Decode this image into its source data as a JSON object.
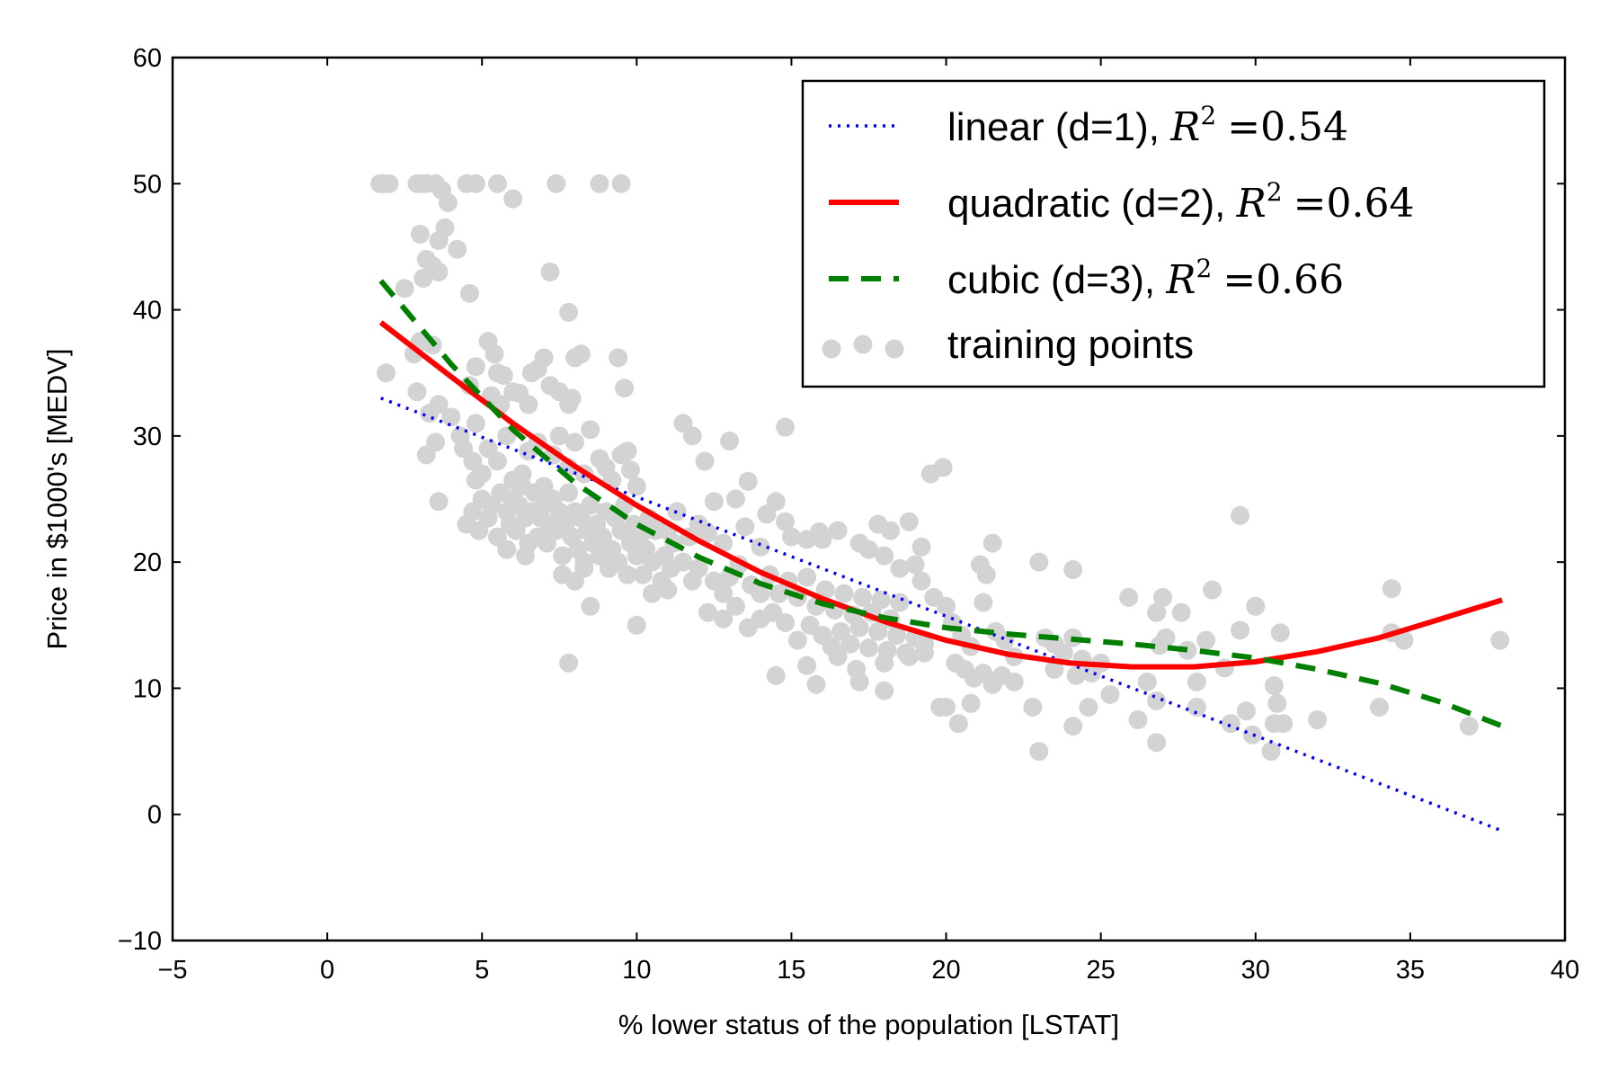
{
  "chart_data": {
    "type": "scatter",
    "title": "",
    "xlabel": "% lower status of the population [LSTAT]",
    "ylabel": "Price in $1000's [MEDV]",
    "xlim": [
      -5,
      40
    ],
    "ylim": [
      -10,
      60
    ],
    "xticks": [
      -5,
      0,
      5,
      10,
      15,
      20,
      25,
      30,
      35,
      40
    ],
    "yticks": [
      -10,
      0,
      10,
      20,
      30,
      40,
      50,
      60
    ],
    "xtick_labels": [
      "−5",
      "0",
      "5",
      "10",
      "15",
      "20",
      "25",
      "30",
      "35",
      "40"
    ],
    "ytick_labels": [
      "−10",
      "0",
      "10",
      "20",
      "30",
      "40",
      "50",
      "60"
    ],
    "grid": false,
    "legend_position": "top-right",
    "scatter": {
      "name": "training points",
      "color": "#d3d3d3",
      "points": [
        [
          1.7,
          50
        ],
        [
          1.8,
          50
        ],
        [
          2.0,
          50
        ],
        [
          2.9,
          50
        ],
        [
          3.0,
          50
        ],
        [
          3.2,
          50
        ],
        [
          3.5,
          50
        ],
        [
          4.5,
          50
        ],
        [
          4.8,
          50
        ],
        [
          5.5,
          50
        ],
        [
          7.4,
          50
        ],
        [
          8.8,
          50
        ],
        [
          9.5,
          50
        ],
        [
          3.7,
          49.5
        ],
        [
          3.9,
          48.5
        ],
        [
          6.0,
          48.8
        ],
        [
          3.0,
          46
        ],
        [
          3.8,
          46.5
        ],
        [
          3.2,
          44
        ],
        [
          3.4,
          43.5
        ],
        [
          3.6,
          45.5
        ],
        [
          4.2,
          44.8
        ],
        [
          3.1,
          42.5
        ],
        [
          3.6,
          43
        ],
        [
          7.2,
          43
        ],
        [
          2.5,
          41.7
        ],
        [
          4.6,
          41.3
        ],
        [
          7.8,
          39.8
        ],
        [
          1.9,
          35
        ],
        [
          2.8,
          36.5
        ],
        [
          3.0,
          37.5
        ],
        [
          3.4,
          37.2
        ],
        [
          2.9,
          33.5
        ],
        [
          3.3,
          31.8
        ],
        [
          3.6,
          32.5
        ],
        [
          3.2,
          28.5
        ],
        [
          3.5,
          29.5
        ],
        [
          3.6,
          24.8
        ],
        [
          4.0,
          31.5
        ],
        [
          4.3,
          30
        ],
        [
          4.6,
          34
        ],
        [
          4.8,
          31
        ],
        [
          4.8,
          35.5
        ],
        [
          5.2,
          37.5
        ],
        [
          5.4,
          36.5
        ],
        [
          5.5,
          35
        ],
        [
          5.3,
          33.2
        ],
        [
          5.6,
          32.5
        ],
        [
          5.7,
          34.8
        ],
        [
          6.0,
          33.5
        ],
        [
          6.2,
          33.4
        ],
        [
          6.5,
          32.5
        ],
        [
          6.6,
          35
        ],
        [
          6.8,
          35.3
        ],
        [
          7.0,
          36.2
        ],
        [
          7.2,
          34
        ],
        [
          7.5,
          33.5
        ],
        [
          7.8,
          32.5
        ],
        [
          7.9,
          33
        ],
        [
          8.0,
          36.2
        ],
        [
          8.2,
          36.5
        ],
        [
          9.4,
          36.2
        ],
        [
          9.6,
          33.8
        ],
        [
          4.4,
          29
        ],
        [
          4.7,
          28
        ],
        [
          4.8,
          26.5
        ],
        [
          5.0,
          27
        ],
        [
          5.2,
          29
        ],
        [
          5.5,
          28
        ],
        [
          5.8,
          30
        ],
        [
          6.0,
          26.5
        ],
        [
          6.3,
          27
        ],
        [
          6.5,
          28.8
        ],
        [
          6.8,
          29.5
        ],
        [
          7.0,
          26
        ],
        [
          7.3,
          28.5
        ],
        [
          7.5,
          30
        ],
        [
          7.8,
          27.5
        ],
        [
          8.0,
          29.5
        ],
        [
          8.3,
          27
        ],
        [
          8.5,
          30.5
        ],
        [
          8.8,
          28.2
        ],
        [
          9.0,
          27.5
        ],
        [
          9.2,
          26.5
        ],
        [
          9.5,
          28.5
        ],
        [
          9.7,
          28.8
        ],
        [
          9.8,
          27.3
        ],
        [
          10.0,
          26
        ],
        [
          4.5,
          23
        ],
        [
          4.7,
          24
        ],
        [
          4.9,
          22.5
        ],
        [
          5.0,
          25
        ],
        [
          5.2,
          23.5
        ],
        [
          5.3,
          24.5
        ],
        [
          5.5,
          22
        ],
        [
          5.6,
          25.5
        ],
        [
          5.8,
          24
        ],
        [
          5.9,
          23
        ],
        [
          6.0,
          25
        ],
        [
          6.1,
          22.5
        ],
        [
          6.2,
          24.5
        ],
        [
          6.3,
          26
        ],
        [
          6.4,
          23.5
        ],
        [
          6.5,
          21.5
        ],
        [
          6.6,
          24
        ],
        [
          6.7,
          25.5
        ],
        [
          6.8,
          22
        ],
        [
          6.9,
          23.5
        ],
        [
          7.0,
          24.5
        ],
        [
          7.1,
          21.5
        ],
        [
          7.2,
          23
        ],
        [
          7.3,
          25
        ],
        [
          7.4,
          22.5
        ],
        [
          7.5,
          24
        ],
        [
          7.6,
          20.5
        ],
        [
          7.7,
          23
        ],
        [
          7.8,
          25.5
        ],
        [
          7.9,
          22
        ],
        [
          8.0,
          24
        ],
        [
          8.1,
          21
        ],
        [
          8.2,
          23.5
        ],
        [
          8.3,
          20
        ],
        [
          8.4,
          22.5
        ],
        [
          8.5,
          24.5
        ],
        [
          8.6,
          21.5
        ],
        [
          8.7,
          23
        ],
        [
          8.8,
          20.5
        ],
        [
          8.9,
          22
        ],
        [
          9.0,
          24
        ],
        [
          9.1,
          19.5
        ],
        [
          9.2,
          21
        ],
        [
          9.3,
          23.5
        ],
        [
          9.4,
          20
        ],
        [
          9.5,
          22.5
        ],
        [
          9.6,
          24.5
        ],
        [
          9.7,
          19
        ],
        [
          9.8,
          21.5
        ],
        [
          9.9,
          23
        ],
        [
          10.0,
          20.5
        ],
        [
          10.1,
          22
        ],
        [
          10.2,
          19
        ],
        [
          10.3,
          21
        ],
        [
          10.4,
          23.5
        ],
        [
          10.5,
          20
        ],
        [
          10.6,
          22.5
        ],
        [
          10.8,
          18.5
        ],
        [
          10.9,
          20.5
        ],
        [
          11.0,
          22.5
        ],
        [
          11.1,
          19.5
        ],
        [
          11.2,
          21.5
        ],
        [
          11.3,
          24
        ],
        [
          11.5,
          20
        ],
        [
          11.7,
          22
        ],
        [
          11.8,
          18.5
        ],
        [
          12.0,
          23
        ],
        [
          5.8,
          21
        ],
        [
          6.4,
          20.5
        ],
        [
          7.6,
          19
        ],
        [
          8.0,
          18.5
        ],
        [
          8.3,
          19.5
        ],
        [
          8.5,
          16.5
        ],
        [
          7.8,
          12
        ],
        [
          10.0,
          15
        ],
        [
          10.5,
          17.5
        ],
        [
          11.0,
          17.8
        ],
        [
          11.5,
          31
        ],
        [
          11.8,
          30
        ],
        [
          12.2,
          28
        ],
        [
          13.0,
          29.6
        ],
        [
          13.6,
          26.4
        ],
        [
          14.8,
          30.7
        ],
        [
          12.5,
          24.8
        ],
        [
          13.2,
          25
        ],
        [
          14.2,
          23.8
        ],
        [
          14.5,
          24.8
        ],
        [
          14.8,
          23.2
        ],
        [
          15.0,
          22
        ],
        [
          15.5,
          21.8
        ],
        [
          15.9,
          22.4
        ],
        [
          16.0,
          21.8
        ],
        [
          12.3,
          22.3
        ],
        [
          12.8,
          21.5
        ],
        [
          13.5,
          22.8
        ],
        [
          14.0,
          21.2
        ],
        [
          12.0,
          19.5
        ],
        [
          12.5,
          18.5
        ],
        [
          12.8,
          17.5
        ],
        [
          13.0,
          18.8
        ],
        [
          13.3,
          19.8
        ],
        [
          13.7,
          18.2
        ],
        [
          14.0,
          17.5
        ],
        [
          14.3,
          19
        ],
        [
          14.6,
          17.5
        ],
        [
          14.9,
          18.5
        ],
        [
          15.2,
          17.2
        ],
        [
          15.5,
          18.8
        ],
        [
          15.8,
          16.5
        ],
        [
          16.1,
          17.8
        ],
        [
          16.4,
          16.2
        ],
        [
          16.7,
          17.5
        ],
        [
          17.0,
          15.8
        ],
        [
          17.3,
          17.2
        ],
        [
          17.6,
          16
        ],
        [
          17.9,
          17
        ],
        [
          18.2,
          15.5
        ],
        [
          18.5,
          16.8
        ],
        [
          12.3,
          16
        ],
        [
          12.8,
          15.5
        ],
        [
          13.2,
          16.5
        ],
        [
          13.6,
          14.8
        ],
        [
          14.0,
          15.5
        ],
        [
          14.4,
          16
        ],
        [
          14.8,
          15.2
        ],
        [
          15.2,
          13.8
        ],
        [
          15.6,
          15
        ],
        [
          16.0,
          14.2
        ],
        [
          16.3,
          13.3
        ],
        [
          16.6,
          14.5
        ],
        [
          16.9,
          13.5
        ],
        [
          17.2,
          14.8
        ],
        [
          17.5,
          13.2
        ],
        [
          17.8,
          14.5
        ],
        [
          18.1,
          13
        ],
        [
          18.4,
          14.2
        ],
        [
          18.7,
          12.8
        ],
        [
          19.0,
          14
        ],
        [
          19.3,
          13.5
        ],
        [
          16.5,
          22.5
        ],
        [
          17.2,
          21.5
        ],
        [
          17.8,
          23
        ],
        [
          18.2,
          22.5
        ],
        [
          18.8,
          23.2
        ],
        [
          17.5,
          21
        ],
        [
          18.0,
          20.5
        ],
        [
          18.5,
          19.5
        ],
        [
          19.0,
          19.8
        ],
        [
          19.2,
          18.5
        ],
        [
          14.5,
          11
        ],
        [
          15.5,
          11.8
        ],
        [
          15.8,
          10.3
        ],
        [
          16.5,
          12.5
        ],
        [
          17.1,
          11.5
        ],
        [
          17.2,
          10.5
        ],
        [
          18.0,
          12
        ],
        [
          18.0,
          9.8
        ],
        [
          18.8,
          12.5
        ],
        [
          19.3,
          12.8
        ],
        [
          19.5,
          27
        ],
        [
          19.9,
          27.5
        ],
        [
          19.2,
          21.2
        ],
        [
          19.6,
          17.2
        ],
        [
          20.0,
          16.5
        ],
        [
          20.2,
          15.2
        ],
        [
          20.5,
          14.2
        ],
        [
          20.8,
          13.3
        ],
        [
          21.1,
          19.8
        ],
        [
          21.3,
          19
        ],
        [
          21.5,
          21.5
        ],
        [
          21.2,
          16.8
        ],
        [
          21.6,
          14.5
        ],
        [
          21.9,
          13.8
        ],
        [
          22.2,
          12.5
        ],
        [
          20.3,
          12
        ],
        [
          20.6,
          11.5
        ],
        [
          20.9,
          10.8
        ],
        [
          21.2,
          11.2
        ],
        [
          21.5,
          10.3
        ],
        [
          21.8,
          11
        ],
        [
          22.2,
          10.5
        ],
        [
          19.8,
          8.5
        ],
        [
          20.0,
          8.5
        ],
        [
          20.4,
          7.2
        ],
        [
          20.8,
          8.8
        ],
        [
          22.8,
          8.5
        ],
        [
          23.0,
          20
        ],
        [
          24.1,
          19.4
        ],
        [
          23.0,
          5
        ],
        [
          24.1,
          7
        ],
        [
          23.2,
          14
        ],
        [
          23.5,
          13.5
        ],
        [
          23.8,
          12.8
        ],
        [
          24.1,
          14
        ],
        [
          24.4,
          12.3
        ],
        [
          24.7,
          11.2
        ],
        [
          25.0,
          12
        ],
        [
          23.5,
          11.5
        ],
        [
          24.2,
          11
        ],
        [
          24.6,
          8.5
        ],
        [
          25.3,
          9.5
        ],
        [
          25.9,
          17.2
        ],
        [
          26.2,
          7.5
        ],
        [
          26.8,
          16
        ],
        [
          27.0,
          17.2
        ],
        [
          27.1,
          14
        ],
        [
          26.8,
          9
        ],
        [
          26.5,
          10.5
        ],
        [
          26.8,
          5.7
        ],
        [
          26.9,
          13.4
        ],
        [
          27.6,
          16
        ],
        [
          27.8,
          13
        ],
        [
          28.1,
          8.5
        ],
        [
          28.1,
          10.5
        ],
        [
          28.4,
          13.8
        ],
        [
          28.6,
          17.8
        ],
        [
          29.0,
          11.6
        ],
        [
          29.2,
          7.2
        ],
        [
          29.5,
          14.6
        ],
        [
          29.5,
          23.7
        ],
        [
          29.7,
          8.2
        ],
        [
          29.9,
          6.3
        ],
        [
          30.0,
          16.5
        ],
        [
          30.6,
          10.2
        ],
        [
          30.7,
          8.8
        ],
        [
          30.6,
          7.2
        ],
        [
          30.5,
          5
        ],
        [
          30.9,
          7.2
        ],
        [
          30.8,
          14.4
        ],
        [
          32.0,
          7.5
        ],
        [
          34.0,
          8.5
        ],
        [
          34.4,
          17.9
        ],
        [
          34.4,
          14.4
        ],
        [
          34.8,
          13.8
        ],
        [
          36.9,
          7
        ],
        [
          37.9,
          13.8
        ]
      ]
    },
    "series": [
      {
        "name": "linear (d=1), R² =0.54",
        "legend_prefix": "linear (d=1), ",
        "r2_value": "0.54",
        "style": "dotted",
        "color": "#0000ff",
        "x": [
          1.73,
          37.97
        ],
        "y": [
          33.0,
          -1.3
        ]
      },
      {
        "name": "quadratic (d=2), R² =0.64",
        "legend_prefix": "quadratic (d=2), ",
        "r2_value": "0.64",
        "style": "solid",
        "color": "#ff0000",
        "x": [
          1.73,
          4,
          6,
          8,
          10,
          12,
          14,
          16,
          18,
          20,
          22,
          24,
          26,
          28,
          30,
          32,
          34,
          36,
          37.97
        ],
        "y": [
          39.0,
          34.7,
          31.0,
          27.6,
          24.5,
          21.7,
          19.2,
          17.1,
          15.3,
          13.8,
          12.7,
          12.0,
          11.7,
          11.7,
          12.1,
          12.9,
          14.0,
          15.5,
          17.0
        ]
      },
      {
        "name": "cubic (d=3), R² =0.66",
        "legend_prefix": "cubic (d=3), ",
        "r2_value": "0.66",
        "style": "dashed",
        "color": "#008000",
        "x": [
          1.73,
          4,
          6,
          8,
          10,
          12,
          14,
          16,
          18,
          20,
          22,
          24,
          26,
          28,
          30,
          32,
          34,
          36,
          37.97
        ],
        "y": [
          42.3,
          35.7,
          30.5,
          26.3,
          23.0,
          20.4,
          18.3,
          16.7,
          15.6,
          14.8,
          14.3,
          13.9,
          13.5,
          13.0,
          12.4,
          11.5,
          10.4,
          8.9,
          7.0
        ]
      }
    ],
    "legend": {
      "r2_symbol": "R",
      "r2_superscript": "2",
      "r2_equals": "=",
      "scatter_label": "training points"
    }
  }
}
